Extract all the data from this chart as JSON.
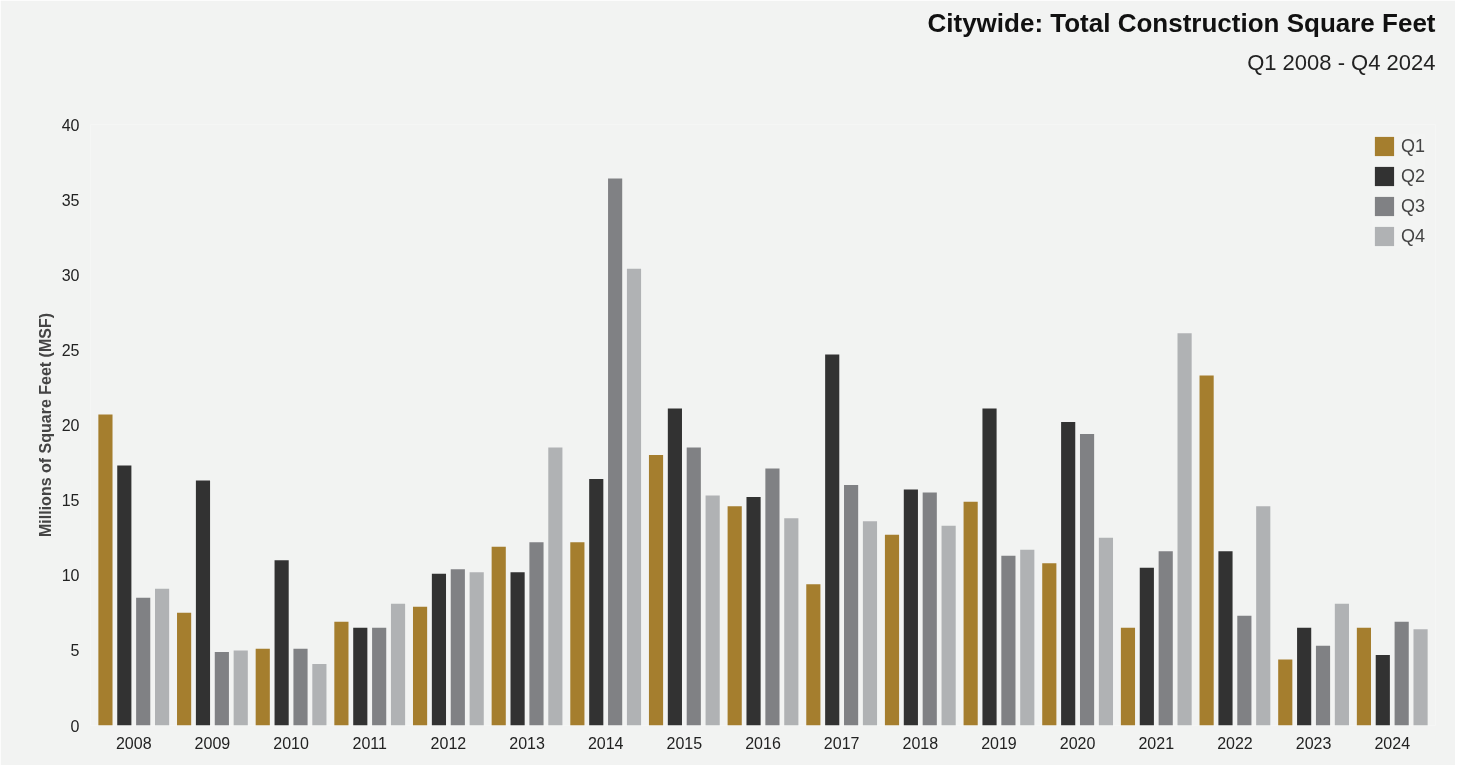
{
  "chart_data": {
    "type": "bar",
    "title": "Citywide: Total Construction Square Feet",
    "subtitle": "Q1 2008 - Q4 2024",
    "ylabel": "Millions of Square Feet (MSF)",
    "categories": [
      "2008",
      "2009",
      "2010",
      "2011",
      "2012",
      "2013",
      "2014",
      "2015",
      "2016",
      "2017",
      "2018",
      "2019",
      "2020",
      "2021",
      "2022",
      "2023",
      "2024"
    ],
    "series": [
      {
        "name": "Q1",
        "color": "#a57e2e",
        "values": [
          20.7,
          7.5,
          5.1,
          6.9,
          7.9,
          11.9,
          12.2,
          18.0,
          14.6,
          9.4,
          12.7,
          14.9,
          10.8,
          6.5,
          23.3,
          4.4,
          6.5
        ]
      },
      {
        "name": "Q2",
        "color": "#323232",
        "values": [
          17.3,
          16.3,
          11.0,
          6.5,
          10.1,
          10.2,
          16.4,
          21.1,
          15.2,
          24.7,
          15.7,
          21.1,
          20.2,
          10.5,
          11.6,
          6.5,
          4.7
        ]
      },
      {
        "name": "Q3",
        "color": "#808184",
        "values": [
          8.5,
          4.9,
          5.1,
          6.5,
          10.4,
          12.2,
          36.4,
          18.5,
          17.1,
          16.0,
          15.5,
          11.3,
          19.4,
          11.6,
          7.3,
          5.3,
          6.9
        ]
      },
      {
        "name": "Q4",
        "color": "#b0b2b4",
        "values": [
          9.1,
          5.0,
          4.1,
          8.1,
          10.2,
          18.5,
          30.4,
          15.3,
          13.8,
          13.6,
          13.3,
          11.7,
          12.5,
          26.1,
          14.6,
          8.1,
          6.4
        ]
      }
    ],
    "ylim": [
      0,
      40
    ],
    "yticks": [
      0,
      5,
      10,
      15,
      20,
      25,
      30,
      35,
      40
    ],
    "grid": false,
    "legend": "top right"
  }
}
